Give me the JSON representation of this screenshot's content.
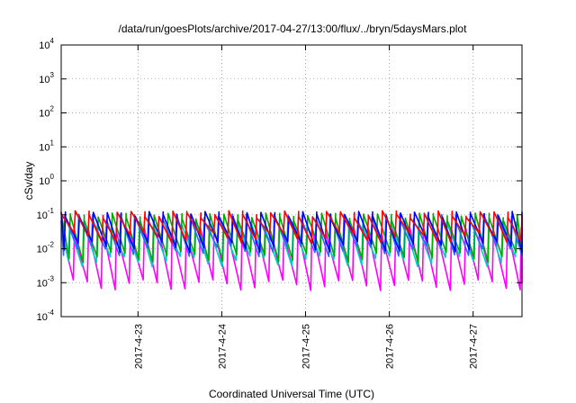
{
  "chart_data": {
    "type": "line",
    "title": "/data/run/goesPlots/archive/2017-04-27/13:00/flux/../bryn/5daysMars.plot",
    "xlabel": "Coordinated Universal Time (UTC)",
    "ylabel": "cSv/day",
    "yscale": "log",
    "ylim": [
      0.0001,
      10000
    ],
    "xlim_days": [
      "2017-04-22 02:00",
      "2017-04-27 14:00"
    ],
    "grid": true,
    "y_ticks": [
      {
        "base": "10",
        "exp": "4"
      },
      {
        "base": "10",
        "exp": "3"
      },
      {
        "base": "10",
        "exp": "2"
      },
      {
        "base": "10",
        "exp": "1"
      },
      {
        "base": "10",
        "exp": "0"
      },
      {
        "base": "10",
        "exp": "-1"
      },
      {
        "base": "10",
        "exp": "-2"
      },
      {
        "base": "10",
        "exp": "-3"
      },
      {
        "base": "10",
        "exp": "-4"
      }
    ],
    "x_ticks": [
      "2017-4-23",
      "2017-4-24",
      "2017-4-25",
      "2017-4-26",
      "2017-4-27"
    ],
    "series": [
      {
        "color": "#ff0000",
        "peak": 0.105,
        "trough": 0.022
      },
      {
        "color": "#00aa00",
        "peak": 0.09,
        "trough": 0.006
      },
      {
        "color": "#0000ff",
        "peak": 0.1,
        "trough": 0.012
      },
      {
        "color": "#ff00ff",
        "peak": 0.035,
        "trough": 0.0009
      },
      {
        "color": "#00cccc",
        "peak": 0.05,
        "trough": 0.0045
      },
      {
        "color": "#3366ff",
        "peak": 0.085,
        "trough": 0.009
      }
    ],
    "sawtooth_period_hours": 4
  }
}
